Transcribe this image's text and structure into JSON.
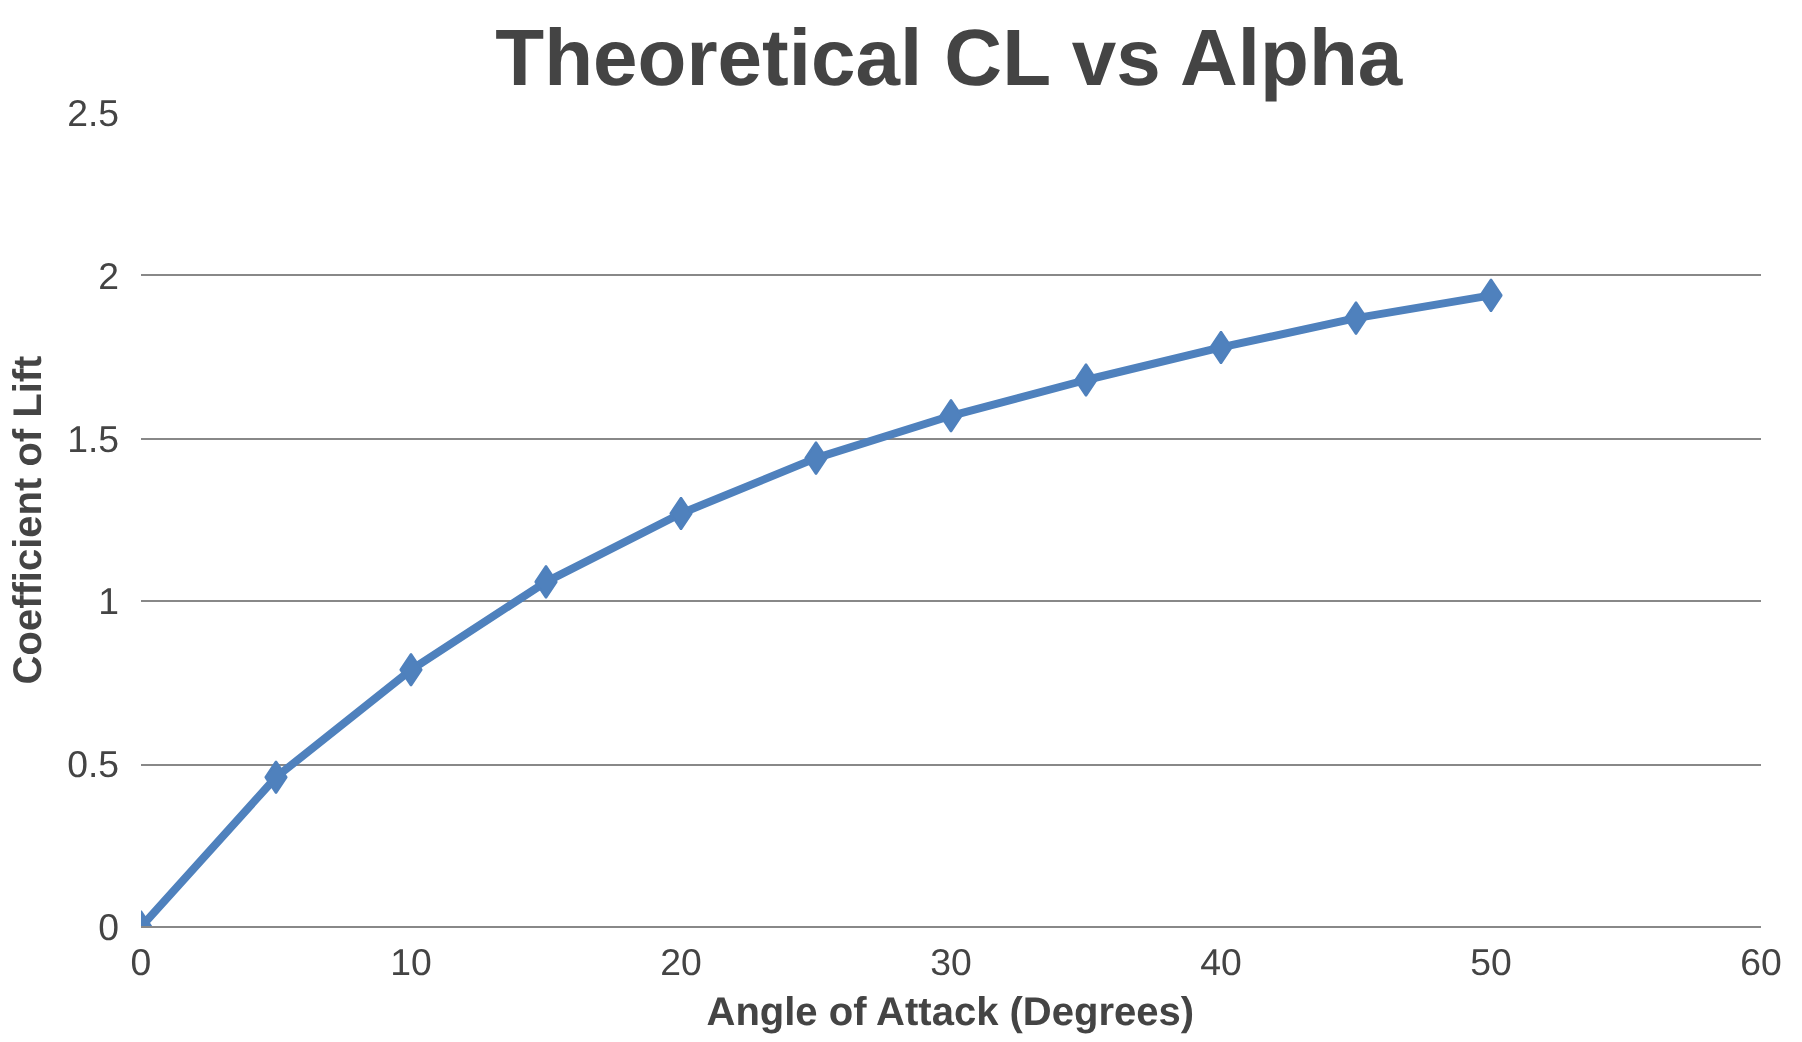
{
  "chart_data": {
    "type": "line",
    "title": "Theoretical CL vs Alpha",
    "xlabel": "Angle of Attack (Degrees)",
    "ylabel": "Coefficient of Lift",
    "x": [
      0,
      5,
      10,
      15,
      20,
      25,
      30,
      35,
      40,
      45,
      50
    ],
    "series": [
      {
        "color": "#4f81bd",
        "values": [
          0,
          0.46,
          0.79,
          1.06,
          1.27,
          1.44,
          1.57,
          1.68,
          1.78,
          1.87,
          1.94
        ]
      }
    ],
    "xlim": [
      0,
      60
    ],
    "xticks": [
      0,
      10,
      20,
      30,
      40,
      50,
      60
    ],
    "ylim": [
      0,
      2.5
    ],
    "yticks": [
      0,
      0.5,
      1,
      1.5,
      2,
      2.5
    ],
    "grid": "y",
    "marker": "diamond",
    "line_style": "solid"
  }
}
